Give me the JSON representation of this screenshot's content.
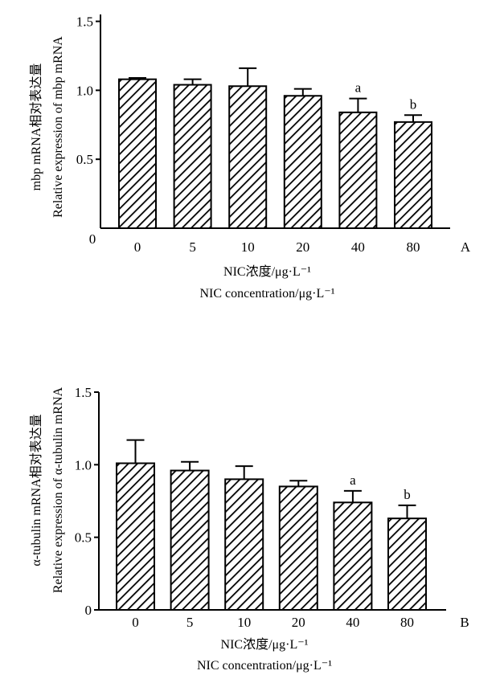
{
  "chart_data": [
    {
      "type": "bar",
      "panel_label": "A",
      "categories": [
        "0",
        "5",
        "10",
        "20",
        "40",
        "80"
      ],
      "values": [
        1.08,
        1.04,
        1.03,
        0.96,
        0.84,
        0.77
      ],
      "errors": [
        0.01,
        0.04,
        0.13,
        0.05,
        0.1,
        0.05
      ],
      "significance": [
        "",
        "",
        "",
        "",
        "a",
        "b"
      ],
      "xlabel_lines": [
        "NIC浓度/μg·L⁻¹",
        "NIC  concentration/μg·L⁻¹"
      ],
      "ylabel_lines": [
        "mbp mRNA相对表达量",
        "Relative  expression  of  mbp  mRNA"
      ],
      "y_ticks": [
        {
          "value": 0,
          "label": "0"
        },
        {
          "value": 0.5,
          "label": "0.5"
        },
        {
          "value": 1.0,
          "label": "1.0"
        },
        {
          "value": 1.5,
          "label": "1.5"
        }
      ],
      "ylim": [
        0,
        1.55
      ],
      "bar_pattern": "diagonal-hatch",
      "grid": false,
      "legend": "none"
    },
    {
      "type": "bar",
      "panel_label": "B",
      "categories": [
        "0",
        "5",
        "10",
        "20",
        "40",
        "80"
      ],
      "values": [
        1.01,
        0.96,
        0.9,
        0.85,
        0.74,
        0.63
      ],
      "errors": [
        0.16,
        0.06,
        0.09,
        0.04,
        0.08,
        0.09
      ],
      "significance": [
        "",
        "",
        "",
        "",
        "a",
        "b"
      ],
      "xlabel_lines": [
        "NIC浓度/μg·L⁻¹",
        "NIC  concentration/μg·L⁻¹"
      ],
      "ylabel_lines": [
        "α-tubulin mRNA相对表达量",
        "Relative  expression  of  α-tubulin  mRNA"
      ],
      "y_ticks": [
        {
          "value": 0,
          "label": "0"
        },
        {
          "value": 0.5,
          "label": "0.5"
        },
        {
          "value": 1.0,
          "label": "1.0"
        },
        {
          "value": 1.5,
          "label": "1.5"
        }
      ],
      "ylim": [
        0,
        1.5
      ],
      "bar_pattern": "diagonal-hatch",
      "grid": false,
      "legend": "none"
    }
  ]
}
